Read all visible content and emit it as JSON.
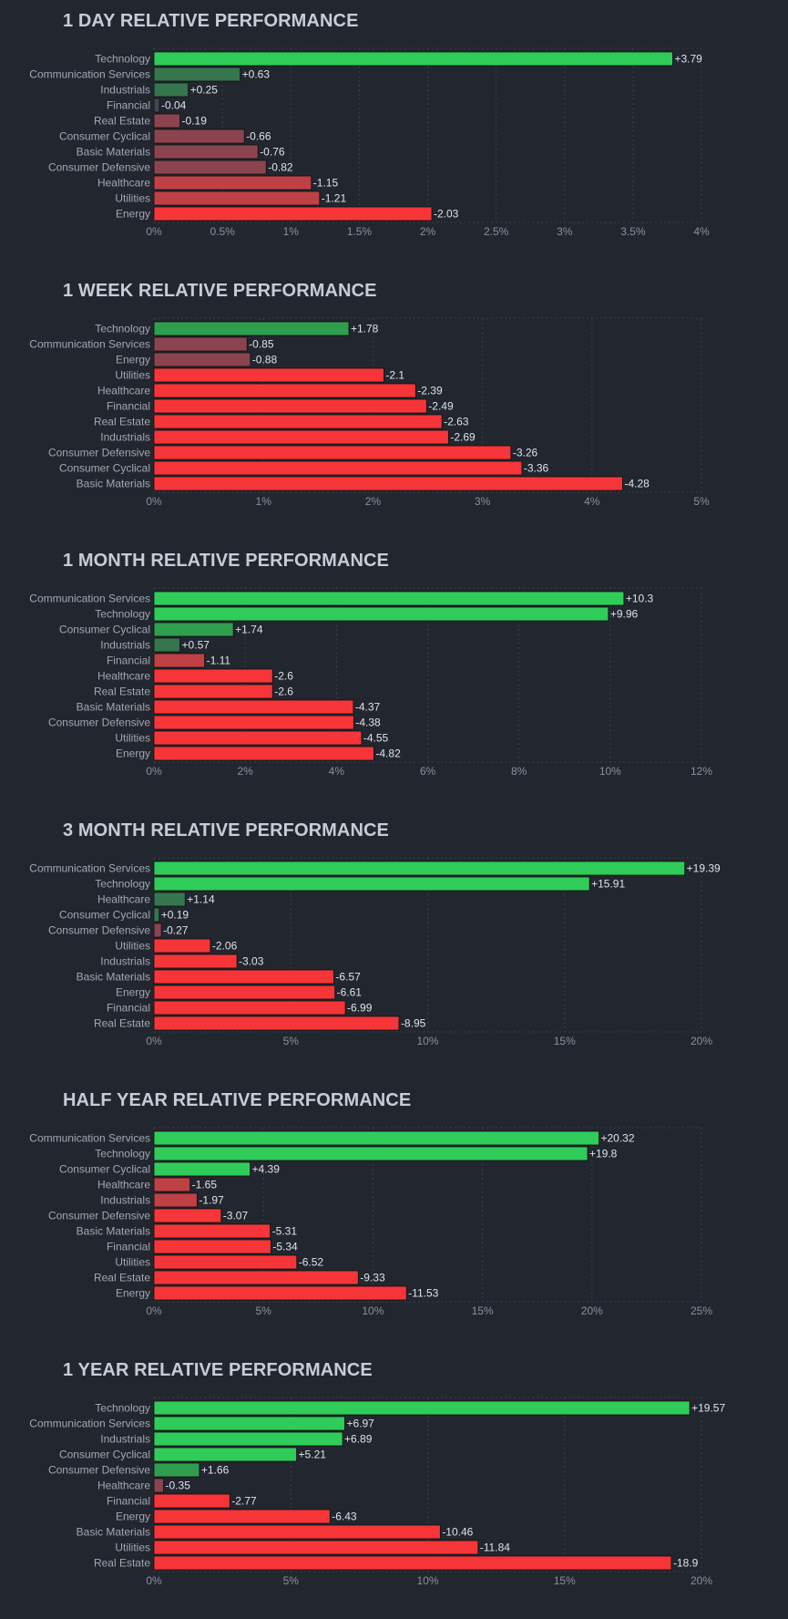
{
  "page": {
    "background": "#22262f"
  },
  "colors": {
    "strong_positive": "#30cc5a",
    "mid_positive": "#2f9e4f",
    "weak_positive": "#35764e",
    "neutral": "#414554",
    "weak_negative": "#8b444e",
    "mid_negative": "#bf4045",
    "strong_negative": "#f63538",
    "grid": "#3a3f4b",
    "bar_stroke": "#111111"
  },
  "chart_data": [
    {
      "type": "bar",
      "orientation": "horizontal",
      "title": "1 DAY RELATIVE PERFORMANCE",
      "categories": [
        "Technology",
        "Communication Services",
        "Industrials",
        "Financial",
        "Real Estate",
        "Consumer Cyclical",
        "Basic Materials",
        "Consumer Defensive",
        "Healthcare",
        "Utilities",
        "Energy"
      ],
      "values": [
        3.79,
        0.63,
        0.25,
        -0.04,
        -0.19,
        -0.66,
        -0.76,
        -0.82,
        -1.15,
        -1.21,
        -2.03
      ],
      "value_labels": [
        "+3.79",
        "+0.63",
        "+0.25",
        "-0.04",
        "-0.19",
        "-0.66",
        "-0.76",
        "-0.82",
        "-1.15",
        "-1.21",
        "-2.03"
      ],
      "xlim": [
        0,
        4
      ],
      "ticks": [
        0,
        0.5,
        1,
        1.5,
        2,
        2.5,
        3,
        3.5,
        4
      ],
      "tick_labels": [
        "0%",
        "0.5%",
        "1%",
        "1.5%",
        "2%",
        "2.5%",
        "3%",
        "3.5%",
        "4%"
      ],
      "xlabel": "",
      "ylabel": "",
      "grid": true
    },
    {
      "type": "bar",
      "orientation": "horizontal",
      "title": "1 WEEK RELATIVE PERFORMANCE",
      "categories": [
        "Technology",
        "Communication Services",
        "Energy",
        "Utilities",
        "Healthcare",
        "Financial",
        "Real Estate",
        "Industrials",
        "Consumer Defensive",
        "Consumer Cyclical",
        "Basic Materials"
      ],
      "values": [
        1.78,
        -0.85,
        -0.88,
        -2.1,
        -2.39,
        -2.49,
        -2.63,
        -2.69,
        -3.26,
        -3.36,
        -4.28
      ],
      "value_labels": [
        "+1.78",
        "-0.85",
        "-0.88",
        "-2.1",
        "-2.39",
        "-2.49",
        "-2.63",
        "-2.69",
        "-3.26",
        "-3.36",
        "-4.28"
      ],
      "xlim": [
        0,
        5
      ],
      "ticks": [
        0,
        1,
        2,
        3,
        4,
        5
      ],
      "tick_labels": [
        "0%",
        "1%",
        "2%",
        "3%",
        "4%",
        "5%"
      ],
      "xlabel": "",
      "ylabel": "",
      "grid": true
    },
    {
      "type": "bar",
      "orientation": "horizontal",
      "title": "1 MONTH RELATIVE PERFORMANCE",
      "categories": [
        "Communication Services",
        "Technology",
        "Consumer Cyclical",
        "Industrials",
        "Financial",
        "Healthcare",
        "Real Estate",
        "Basic Materials",
        "Consumer Defensive",
        "Utilities",
        "Energy"
      ],
      "values": [
        10.3,
        9.96,
        1.74,
        0.57,
        -1.11,
        -2.6,
        -2.6,
        -4.37,
        -4.38,
        -4.55,
        -4.82
      ],
      "value_labels": [
        "+10.3",
        "+9.96",
        "+1.74",
        "+0.57",
        "-1.11",
        "-2.6",
        "-2.6",
        "-4.37",
        "-4.38",
        "-4.55",
        "-4.82"
      ],
      "xlim": [
        0,
        12
      ],
      "ticks": [
        0,
        2,
        4,
        6,
        8,
        10,
        12
      ],
      "tick_labels": [
        "0%",
        "2%",
        "4%",
        "6%",
        "8%",
        "10%",
        "12%"
      ],
      "xlabel": "",
      "ylabel": "",
      "grid": true
    },
    {
      "type": "bar",
      "orientation": "horizontal",
      "title": "3 MONTH RELATIVE PERFORMANCE",
      "categories": [
        "Communication Services",
        "Technology",
        "Healthcare",
        "Consumer Cyclical",
        "Consumer Defensive",
        "Utilities",
        "Industrials",
        "Basic Materials",
        "Energy",
        "Financial",
        "Real Estate"
      ],
      "values": [
        19.39,
        15.91,
        1.14,
        0.19,
        -0.27,
        -2.06,
        -3.03,
        -6.57,
        -6.61,
        -6.99,
        -8.95
      ],
      "value_labels": [
        "+19.39",
        "+15.91",
        "+1.14",
        "+0.19",
        "-0.27",
        "-2.06",
        "-3.03",
        "-6.57",
        "-6.61",
        "-6.99",
        "-8.95"
      ],
      "xlim": [
        0,
        20
      ],
      "ticks": [
        0,
        5,
        10,
        15,
        20
      ],
      "tick_labels": [
        "0%",
        "5%",
        "10%",
        "15%",
        "20%"
      ],
      "xlabel": "",
      "ylabel": "",
      "grid": true
    },
    {
      "type": "bar",
      "orientation": "horizontal",
      "title": "HALF YEAR RELATIVE PERFORMANCE",
      "categories": [
        "Communication Services",
        "Technology",
        "Consumer Cyclical",
        "Healthcare",
        "Industrials",
        "Consumer Defensive",
        "Basic Materials",
        "Financial",
        "Utilities",
        "Real Estate",
        "Energy"
      ],
      "values": [
        20.32,
        19.8,
        4.39,
        -1.65,
        -1.97,
        -3.07,
        -5.31,
        -5.34,
        -6.52,
        -9.33,
        -11.53
      ],
      "value_labels": [
        "+20.32",
        "+19.8",
        "+4.39",
        "-1.65",
        "-1.97",
        "-3.07",
        "-5.31",
        "-5.34",
        "-6.52",
        "-9.33",
        "-11.53"
      ],
      "xlim": [
        0,
        25
      ],
      "ticks": [
        0,
        5,
        10,
        15,
        20,
        25
      ],
      "tick_labels": [
        "0%",
        "5%",
        "10%",
        "15%",
        "20%",
        "25%"
      ],
      "xlabel": "",
      "ylabel": "",
      "grid": true
    },
    {
      "type": "bar",
      "orientation": "horizontal",
      "title": "1 YEAR RELATIVE PERFORMANCE",
      "categories": [
        "Technology",
        "Communication Services",
        "Industrials",
        "Consumer Cyclical",
        "Consumer Defensive",
        "Healthcare",
        "Financial",
        "Energy",
        "Basic Materials",
        "Utilities",
        "Real Estate"
      ],
      "values": [
        19.57,
        6.97,
        6.89,
        5.21,
        1.66,
        -0.35,
        -2.77,
        -6.43,
        -10.46,
        -11.84,
        -18.9
      ],
      "value_labels": [
        "+19.57",
        "+6.97",
        "+6.89",
        "+5.21",
        "+1.66",
        "-0.35",
        "-2.77",
        "-6.43",
        "-10.46",
        "-11.84",
        "-18.9"
      ],
      "xlim": [
        0,
        20
      ],
      "ticks": [
        0,
        5,
        10,
        15,
        20
      ],
      "tick_labels": [
        "0%",
        "5%",
        "10%",
        "15%",
        "20%"
      ],
      "xlabel": "",
      "ylabel": "",
      "grid": true
    }
  ]
}
